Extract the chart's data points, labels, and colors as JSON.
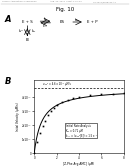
{
  "header_left": "Human Applications Submission",
  "header_mid": "Aug. 24, 2011  Sheet 11 of 22",
  "header_right": "US 2011/0268149 A1",
  "figure_title": "Fig. 10",
  "panel_A_label": "A",
  "panel_B_label": "B",
  "x_data": [
    0,
    0.25,
    0.5,
    0.75,
    1.0,
    1.25,
    1.5,
    1.75,
    2.0,
    2.5,
    3.0,
    3.5,
    4.0,
    5.0,
    6.0,
    7.0,
    8.0
  ],
  "y_data": [
    0,
    8e-08,
    1.4e-07,
    1.9e-07,
    2.3e-07,
    2.7e-07,
    3e-07,
    3.2e-07,
    3.4e-07,
    3.65e-07,
    3.8e-07,
    3.92e-07,
    4e-07,
    4.1e-07,
    4.18e-07,
    4.22e-07,
    4.25e-07
  ],
  "vmax_label": "vₘₐˣ = 4.6 x 10⁻⁷ μM/s",
  "vmax_line_y": 4.6e-07,
  "annotation_line1": "Initial Rate Analysis",
  "annotation_line2": "Kₘ = 0.71 μM",
  "annotation_line3": "kₕₐₜ = (vₘₐˣ[E]) = 1.5 s⁻¹",
  "xlabel": "[Z-Phe-Arg-AMC] (μM)",
  "ylabel": "Intial Velocity (μM/s)",
  "xlim": [
    0,
    8
  ],
  "ylim": [
    0,
    5.2e-07
  ],
  "yticks": [
    0,
    1e-07,
    2e-07,
    3e-07,
    4e-07
  ],
  "ytick_labels": [
    "0",
    "1x10⁻⁷",
    "2x10⁻⁷",
    "3x10⁻⁷",
    "4x10⁻⁷"
  ],
  "xticks": [
    0,
    2,
    4,
    6,
    8
  ],
  "Km": 0.71,
  "Vmax": 4.6e-07,
  "bg_color": "#ffffff"
}
